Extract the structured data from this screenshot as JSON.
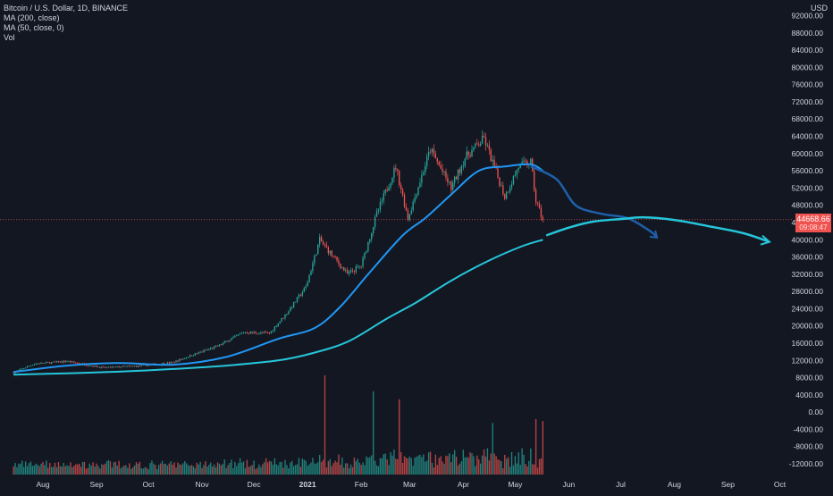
{
  "legend": {
    "title": "Bitcoin / U.S. Dollar, 1D, BINANCE",
    "ma200": "MA (200, close)",
    "ma50": "MA (50, close, 0)",
    "vol": "Vol"
  },
  "currency": "USD",
  "last_price": {
    "value": "44668.66",
    "countdown": "09:08:47"
  },
  "colors": {
    "background": "#131722",
    "up": "#26a69a",
    "down": "#ef5350",
    "ma50": "#2196f3",
    "ma200": "#26c6da",
    "drawing": "#1e5fa8",
    "axis_text": "#d1d4dc"
  },
  "chart_data": {
    "type": "candlestick",
    "title": "Bitcoin / U.S. Dollar, 1D, BINANCE",
    "grid": false,
    "price_axis": {
      "ticks": [
        "92000.00",
        "88000.00",
        "84000.00",
        "80000.00",
        "76000.00",
        "72000.00",
        "68000.00",
        "64000.00",
        "60000.00",
        "56000.00",
        "52000.00",
        "48000.00",
        "44000.00",
        "40000.00",
        "36000.00",
        "32000.00",
        "28000.00",
        "24000.00",
        "20000.00",
        "16000.00",
        "12000.00",
        "8000.00",
        "4000.00",
        "0.00",
        "-4000.00",
        "-8000.00",
        "-12000.00"
      ],
      "range": [
        -14000,
        94000
      ]
    },
    "time_axis": {
      "ticks": [
        "Aug",
        "Sep",
        "Oct",
        "Nov",
        "Dec",
        "2021",
        "Feb",
        "Mar",
        "Apr",
        "May",
        "Jun",
        "Jul",
        "Aug",
        "Sep",
        "Oct"
      ]
    },
    "price_path": [
      [
        "2020-07-15",
        9200
      ],
      [
        "2020-07-27",
        11200
      ],
      [
        "2020-08-15",
        11800
      ],
      [
        "2020-09-05",
        10300
      ],
      [
        "2020-09-25",
        10700
      ],
      [
        "2020-10-15",
        11500
      ],
      [
        "2020-10-28",
        13500
      ],
      [
        "2020-11-10",
        15300
      ],
      [
        "2020-11-25",
        18500
      ],
      [
        "2020-12-10",
        18300
      ],
      [
        "2020-12-20",
        23000
      ],
      [
        "2020-12-31",
        29000
      ],
      [
        "2021-01-08",
        40000
      ],
      [
        "2021-01-14",
        37000
      ],
      [
        "2021-01-24",
        32000
      ],
      [
        "2021-02-01",
        34000
      ],
      [
        "2021-02-10",
        46000
      ],
      [
        "2021-02-21",
        57000
      ],
      [
        "2021-02-28",
        45000
      ],
      [
        "2021-03-13",
        61000
      ],
      [
        "2021-03-25",
        52000
      ],
      [
        "2021-04-02",
        59000
      ],
      [
        "2021-04-13",
        63500
      ],
      [
        "2021-04-25",
        50000
      ],
      [
        "2021-05-03",
        57000
      ],
      [
        "2021-05-10",
        58000
      ],
      [
        "2021-05-13",
        49000
      ],
      [
        "2021-05-17",
        44668
      ]
    ],
    "series": [
      {
        "name": "MA (50, close, 0)",
        "points": [
          [
            "2020-07-15",
            9300
          ],
          [
            "2020-08-15",
            10800
          ],
          [
            "2020-09-15",
            11400
          ],
          [
            "2020-10-15",
            11000
          ],
          [
            "2020-11-15",
            12800
          ],
          [
            "2020-12-15",
            17000
          ],
          [
            "2021-01-05",
            19500
          ],
          [
            "2021-01-20",
            24500
          ],
          [
            "2021-02-05",
            32000
          ],
          [
            "2021-02-25",
            41000
          ],
          [
            "2021-03-10",
            45000
          ],
          [
            "2021-03-25",
            50500
          ],
          [
            "2021-04-10",
            56000
          ],
          [
            "2021-04-25",
            57000
          ],
          [
            "2021-05-10",
            57500
          ],
          [
            "2021-05-17",
            56000
          ]
        ]
      },
      {
        "name": "MA (200, close)",
        "points": [
          [
            "2020-07-15",
            8700
          ],
          [
            "2020-08-15",
            9000
          ],
          [
            "2020-09-15",
            9400
          ],
          [
            "2020-10-15",
            10000
          ],
          [
            "2020-11-15",
            10800
          ],
          [
            "2020-12-15",
            12000
          ],
          [
            "2021-01-05",
            13800
          ],
          [
            "2021-01-25",
            16500
          ],
          [
            "2021-02-15",
            21500
          ],
          [
            "2021-03-05",
            25500
          ],
          [
            "2021-03-25",
            30500
          ],
          [
            "2021-04-15",
            35000
          ],
          [
            "2021-05-05",
            38500
          ],
          [
            "2021-05-17",
            40000
          ]
        ]
      }
    ],
    "volume_peaks": [
      [
        "2021-01-11",
        25000
      ],
      [
        "2021-02-08",
        21000
      ],
      [
        "2021-02-23",
        19000
      ],
      [
        "2021-04-18",
        13000
      ],
      [
        "2021-05-13",
        14000
      ],
      [
        "2021-05-17",
        13500
      ]
    ],
    "drawings": [
      {
        "name": "projection-top",
        "points": [
          [
            "2021-05-10",
            57000
          ],
          [
            "2021-05-25",
            54000
          ],
          [
            "2021-06-05",
            48000
          ],
          [
            "2021-06-20",
            46000
          ],
          [
            "2021-07-05",
            45000
          ],
          [
            "2021-07-18",
            42000
          ],
          [
            "2021-07-22",
            40500
          ]
        ]
      },
      {
        "name": "projection-bottom",
        "points": [
          [
            "2021-05-19",
            41000
          ],
          [
            "2021-06-01",
            42800
          ],
          [
            "2021-06-15",
            44200
          ],
          [
            "2021-07-01",
            44800
          ],
          [
            "2021-07-15",
            45200
          ],
          [
            "2021-08-01",
            44600
          ],
          [
            "2021-08-20",
            43200
          ],
          [
            "2021-09-10",
            41500
          ],
          [
            "2021-09-25",
            39500
          ]
        ]
      }
    ]
  }
}
